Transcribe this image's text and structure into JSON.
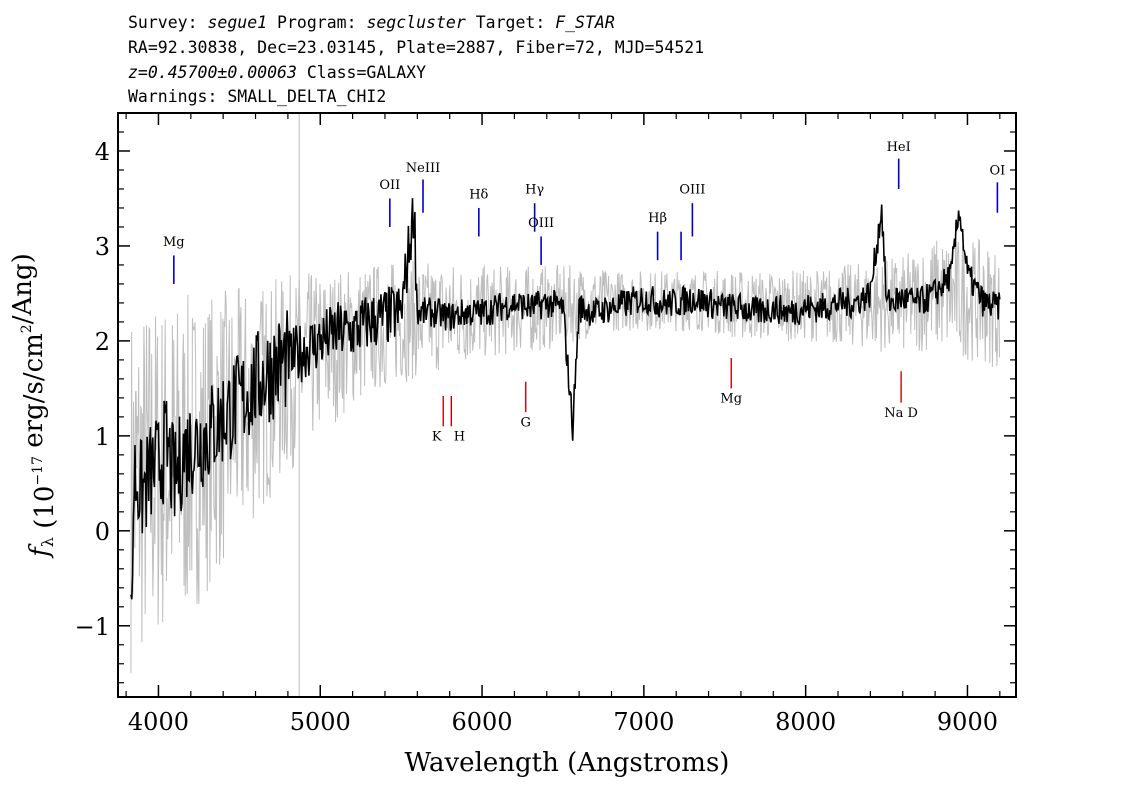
{
  "header": {
    "line1": {
      "survey_label": "Survey: ",
      "survey": "segue1",
      "program_label": " Program: ",
      "program": "segcluster",
      "target_label": " Target: ",
      "target": "F_STAR"
    },
    "line2": "RA=92.30838, Dec=23.03145, Plate=2887, Fiber=72, MJD=54521",
    "line3": {
      "redshift": "z=0.45700±0.00063",
      "class": " Class=GALAXY"
    },
    "line4": "Warnings: SMALL_DELTA_CHI2"
  },
  "chart_data": {
    "type": "line",
    "xlabel": "Wavelength (Angstroms)",
    "ylabel": "f_λ (10^-17 erg/s/cm^2/Ang)",
    "xlim": [
      3750,
      9300
    ],
    "ylim": [
      -1.75,
      4.4
    ],
    "x_ticks": [
      4000,
      5000,
      6000,
      7000,
      8000,
      9000
    ],
    "y_ticks": [
      -1,
      0,
      1,
      2,
      3,
      4
    ],
    "y_tick_labels": [
      "−1",
      "0",
      "1",
      "2",
      "3",
      "4"
    ],
    "grid": false,
    "series": [
      {
        "role": "error-band",
        "color": "#bebebe",
        "x": [
          3830,
          4000,
          4200,
          4400,
          4600,
          4800,
          5000,
          5200,
          5400,
          5600,
          5800,
          6000,
          6200,
          6400,
          6600,
          6800,
          7000,
          7200,
          7400,
          7600,
          7800,
          8000,
          8200,
          8400,
          8600,
          8800,
          9000,
          9200
        ],
        "low": [
          -1.5,
          -1.2,
          -0.9,
          -0.4,
          0.1,
          0.6,
          1.0,
          1.3,
          1.5,
          1.6,
          1.7,
          1.8,
          1.85,
          1.9,
          2.0,
          2.1,
          2.1,
          2.1,
          2.1,
          2.0,
          2.0,
          2.0,
          1.95,
          1.9,
          1.85,
          1.9,
          1.8,
          1.7
        ],
        "high": [
          2.4,
          2.5,
          2.5,
          2.55,
          2.6,
          2.7,
          2.75,
          2.8,
          2.85,
          2.85,
          2.85,
          2.8,
          2.8,
          2.8,
          2.8,
          2.75,
          2.75,
          2.75,
          2.75,
          2.75,
          2.75,
          2.75,
          2.8,
          2.85,
          2.9,
          3.1,
          3.1,
          3.0
        ]
      },
      {
        "role": "flux",
        "color": "#000000",
        "x": [
          3830,
          3850,
          3900,
          3950,
          4000,
          4050,
          4100,
          4150,
          4200,
          4300,
          4400,
          4500,
          4600,
          4700,
          4800,
          4900,
          5000,
          5100,
          5200,
          5300,
          5400,
          5500,
          5580,
          5600,
          5700,
          5800,
          5900,
          6000,
          6100,
          6200,
          6300,
          6400,
          6500,
          6560,
          6600,
          6700,
          6800,
          6900,
          7000,
          7100,
          7200,
          7300,
          7400,
          7500,
          7600,
          7700,
          7800,
          7900,
          8000,
          8100,
          8200,
          8300,
          8400,
          8470,
          8500,
          8600,
          8700,
          8800,
          8900,
          8950,
          9000,
          9100,
          9200
        ],
        "y": [
          -1.1,
          0.6,
          0.4,
          0.6,
          0.7,
          0.9,
          0.5,
          0.8,
          0.9,
          1.0,
          1.2,
          1.35,
          1.55,
          1.7,
          1.8,
          1.9,
          2.0,
          2.1,
          2.1,
          2.2,
          2.25,
          2.3,
          3.4,
          2.3,
          2.3,
          2.25,
          2.3,
          2.3,
          2.35,
          2.4,
          2.35,
          2.4,
          2.35,
          1.1,
          2.35,
          2.3,
          2.35,
          2.4,
          2.45,
          2.4,
          2.4,
          2.45,
          2.4,
          2.35,
          2.35,
          2.3,
          2.35,
          2.3,
          2.35,
          2.35,
          2.4,
          2.4,
          2.5,
          3.4,
          2.4,
          2.45,
          2.4,
          2.5,
          2.7,
          3.4,
          2.7,
          2.4,
          2.35
        ]
      }
    ],
    "line_markers": [
      {
        "label": "Mg",
        "x": 4095,
        "y": [
          2.6,
          2.9
        ],
        "label_y": 3.0,
        "color": "#0000cc"
      },
      {
        "label": "OII",
        "x": 5430,
        "y": [
          3.2,
          3.5
        ],
        "label_y": 3.6,
        "color": "#0000cc"
      },
      {
        "label": "NeIII",
        "x": 5635,
        "y": [
          3.35,
          3.7
        ],
        "label_y": 3.78,
        "color": "#0000cc"
      },
      {
        "label": "Hδ",
        "x": 5980,
        "y": [
          3.1,
          3.4
        ],
        "label_y": 3.5,
        "color": "#0000cc"
      },
      {
        "label": "Hγ",
        "x": 6325,
        "y": [
          3.15,
          3.45
        ],
        "label_y": 3.55,
        "color": "#0000cc"
      },
      {
        "label": "OIII",
        "x": 6365,
        "y": [
          2.8,
          3.1
        ],
        "label_y": 3.2,
        "color": "#0000cc"
      },
      {
        "label": "Hβ",
        "x": 7085,
        "y": [
          2.85,
          3.15
        ],
        "label_y": 3.25,
        "color": "#0000cc"
      },
      {
        "label": "",
        "x": 7230,
        "y": [
          2.85,
          3.15
        ],
        "label_y": 3.25,
        "color": "#0000cc"
      },
      {
        "label": "OIII",
        "x": 7300,
        "y": [
          3.1,
          3.45
        ],
        "label_y": 3.55,
        "color": "#0000cc"
      },
      {
        "label": "HeI",
        "x": 8575,
        "y": [
          3.6,
          3.92
        ],
        "label_y": 4.0,
        "color": "#0000cc"
      },
      {
        "label": "OI",
        "x": 9185,
        "y": [
          3.35,
          3.67
        ],
        "label_y": 3.75,
        "color": "#0000cc"
      },
      {
        "label": "",
        "x": 5760,
        "y": [
          1.1,
          1.42
        ],
        "label_y": 0.95,
        "color": "#cc0000"
      },
      {
        "label": "",
        "x": 5810,
        "y": [
          1.1,
          1.42
        ],
        "label_y": 0.95,
        "color": "#cc0000"
      },
      {
        "label": "K",
        "x": 5720,
        "y": [
          0,
          0
        ],
        "label_y": 0.95,
        "color": "#cc0000",
        "text_only": true
      },
      {
        "label": "H",
        "x": 5860,
        "y": [
          0,
          0
        ],
        "label_y": 0.95,
        "color": "#cc0000",
        "text_only": true
      },
      {
        "label": "G",
        "x": 6270,
        "y": [
          1.25,
          1.57
        ],
        "label_y": 1.1,
        "color": "#cc0000"
      },
      {
        "label": "Mg",
        "x": 7540,
        "y": [
          1.5,
          1.82
        ],
        "label_y": 1.35,
        "color": "#cc0000"
      },
      {
        "label": "Na  D",
        "x": 8590,
        "y": [
          1.35,
          1.68
        ],
        "label_y": 1.2,
        "color": "#cc0000"
      }
    ]
  }
}
